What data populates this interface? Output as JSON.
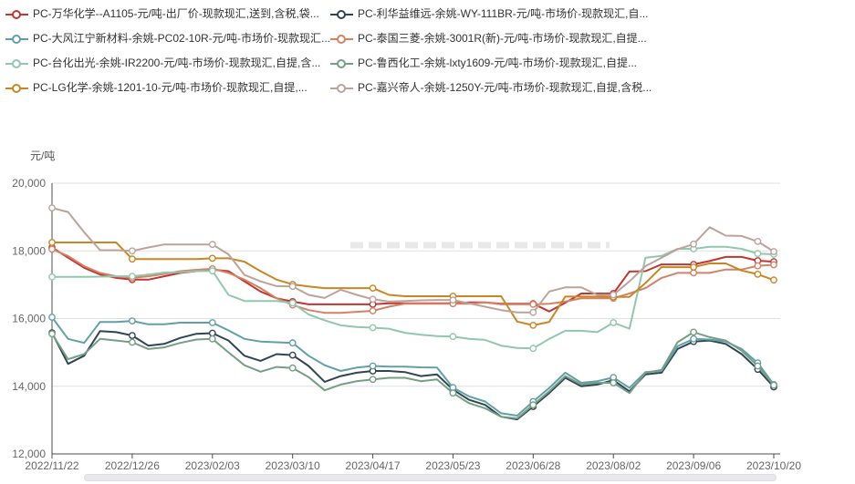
{
  "chart_data": {
    "type": "line",
    "title": "",
    "y_axis_title": "元/吨",
    "ylim": [
      12000,
      20000
    ],
    "y_tick_step": 2000,
    "y_tick_labels": [
      "20,000",
      "18,000",
      "16,000",
      "14,000",
      "12,000"
    ],
    "x_tick_labels": [
      "2022/11/22",
      "2022/12/26",
      "2023/02/03",
      "2023/03/10",
      "2023/04/17",
      "2023/05/23",
      "2023/06/28",
      "2023/08/02",
      "2023/09/06",
      "2023/10/20"
    ],
    "grid": true,
    "legend_position": "top",
    "marker_indices": [
      0,
      5,
      10,
      15,
      20,
      25,
      30,
      35,
      40,
      44,
      45
    ],
    "series": [
      {
        "name": "PC-万华化学--A1105-元/吨-出厂价-现款现汇,送到,含税,袋...",
        "color": "#c23531",
        "values": [
          18100,
          17800,
          17500,
          17300,
          17200,
          17150,
          17150,
          17250,
          17350,
          17400,
          17450,
          17400,
          17100,
          16800,
          16600,
          16500,
          16420,
          16420,
          16420,
          16420,
          16420,
          16450,
          16450,
          16450,
          16450,
          16450,
          16480,
          16480,
          16440,
          16440,
          16440,
          16210,
          16470,
          16740,
          16740,
          16740,
          17390,
          17400,
          17600,
          17600,
          17600,
          17700,
          17820,
          17820,
          17710,
          17680
        ]
      },
      {
        "name": "PC-利华益维远-余姚-WY-111BR-元/吨-市场价-现款现汇,自...",
        "color": "#2f4554",
        "values": [
          15580,
          14660,
          14900,
          15630,
          15600,
          15500,
          15200,
          15250,
          15430,
          15550,
          15570,
          15350,
          14900,
          14750,
          14950,
          14920,
          14600,
          14130,
          14300,
          14400,
          14450,
          14450,
          14420,
          14300,
          14350,
          13900,
          13600,
          13450,
          13100,
          13020,
          13400,
          13800,
          14250,
          14000,
          14050,
          14180,
          13850,
          14350,
          14400,
          15100,
          15320,
          15350,
          15250,
          14950,
          14500,
          13980
        ]
      },
      {
        "name": "PC-大风江宁新材料-余姚-PC02-10R-元/吨-市场价-现款现汇...",
        "color": "#61a0a8",
        "values": [
          16040,
          15400,
          15280,
          15900,
          15900,
          15930,
          15830,
          15830,
          15880,
          15880,
          15880,
          15650,
          15400,
          15320,
          15300,
          15280,
          14900,
          14620,
          14450,
          14550,
          14600,
          14580,
          14580,
          14560,
          14550,
          13960,
          13700,
          13550,
          13200,
          13130,
          13550,
          13950,
          14400,
          14100,
          14150,
          14260,
          13950,
          14420,
          14450,
          15180,
          15400,
          15380,
          15320,
          15100,
          14690,
          14050
        ]
      },
      {
        "name": "PC-泰国三菱-余姚-3001R(新)-元/吨-市场价-现款现汇,自提...",
        "color": "#d48265",
        "values": [
          18050,
          17850,
          17550,
          17350,
          17250,
          17200,
          17250,
          17320,
          17400,
          17440,
          17470,
          17350,
          17150,
          16900,
          16600,
          16400,
          16250,
          16170,
          16170,
          16200,
          16230,
          16350,
          16440,
          16440,
          16440,
          16440,
          16440,
          16480,
          16420,
          16420,
          16420,
          16440,
          16500,
          16600,
          16600,
          16600,
          16740,
          16900,
          17200,
          17350,
          17350,
          17350,
          17450,
          17450,
          17560,
          17590
        ]
      },
      {
        "name": "PC-台化出光-余姚-IR2200-元/吨-市场价-现款现汇,自提,含...",
        "color": "#91c7ae",
        "values": [
          17230,
          17230,
          17230,
          17240,
          17250,
          17250,
          17300,
          17360,
          17370,
          17400,
          17410,
          16700,
          16520,
          16520,
          16520,
          16460,
          16120,
          15950,
          15800,
          15750,
          15730,
          15700,
          15580,
          15520,
          15480,
          15470,
          15400,
          15370,
          15200,
          15130,
          15120,
          15400,
          15640,
          15640,
          15600,
          15880,
          15700,
          17800,
          17850,
          18060,
          18060,
          18120,
          18120,
          18060,
          17920,
          17900
        ]
      },
      {
        "name": "PC-鲁西化工-余姚-lxty1609-元/吨-市场价-现款现汇,自提...",
        "color": "#749f83",
        "values": [
          15550,
          14800,
          14950,
          15400,
          15350,
          15300,
          15100,
          15150,
          15280,
          15380,
          15400,
          15000,
          14620,
          14430,
          14570,
          14540,
          14270,
          13880,
          14050,
          14150,
          14200,
          14250,
          14250,
          14150,
          14200,
          13800,
          13500,
          13350,
          13100,
          13050,
          13450,
          13850,
          14300,
          14050,
          14100,
          14100,
          13800,
          14400,
          14480,
          15300,
          15600,
          15450,
          15350,
          15050,
          14600,
          14030
        ]
      },
      {
        "name": "PC-LG化学-余姚-1201-10-元/吨-市场价-现款现汇,自提,...",
        "color": "#ca8622",
        "values": [
          18250,
          18250,
          18250,
          18250,
          18250,
          17760,
          17760,
          17760,
          17760,
          17760,
          17780,
          17780,
          17680,
          17400,
          17150,
          17010,
          16950,
          16900,
          16900,
          16900,
          16900,
          16700,
          16660,
          16660,
          16660,
          16660,
          16660,
          16660,
          16660,
          15910,
          15800,
          15900,
          16650,
          16650,
          16650,
          16640,
          16640,
          17050,
          17520,
          17520,
          17520,
          17630,
          17630,
          17420,
          17310,
          17140
        ]
      },
      {
        "name": "PC-嘉兴帝人-余姚-1250Y-元/吨-市场价-现款现汇,自提,含税...",
        "color": "#bda29a",
        "values": [
          19270,
          19150,
          18550,
          18020,
          18020,
          18000,
          18100,
          18190,
          18190,
          18190,
          18190,
          17900,
          17290,
          17100,
          16960,
          16950,
          16700,
          16610,
          16850,
          16700,
          16570,
          16500,
          16520,
          16540,
          16550,
          16550,
          16450,
          16350,
          16250,
          16180,
          16180,
          16800,
          16920,
          16920,
          16700,
          16700,
          17100,
          17550,
          17800,
          18050,
          18200,
          18700,
          18450,
          18440,
          18280,
          17980
        ]
      }
    ]
  },
  "colors": {
    "background": "#ffffff",
    "axis_line": "#4d4d4d",
    "grid_line": "#e0e0e0",
    "tick_label": "#666666",
    "legend_text": "#333333",
    "watermark": "#d6d6d6",
    "scrollbar_fill": "#e9e9ed",
    "scrollbar_border": "#dcdce2"
  }
}
